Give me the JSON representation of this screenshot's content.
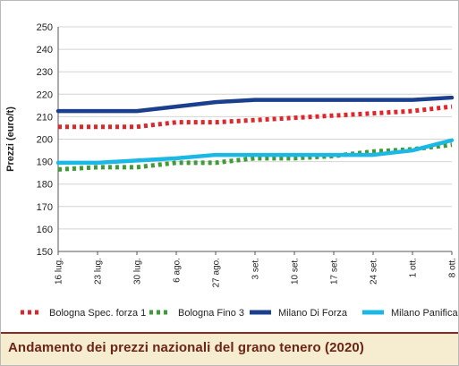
{
  "chart_data": {
    "type": "line",
    "title": "Andamento dei prezzi nazionali del grano tenero (2020)",
    "ylabel": "Prezzi (euro/t)",
    "xlabel": "",
    "ylim": [
      150,
      250
    ],
    "yticks": [
      150,
      160,
      170,
      180,
      190,
      200,
      210,
      220,
      230,
      240,
      250
    ],
    "categories": [
      "16 lug.",
      "23 lug.",
      "30 lug.",
      "6 ago.",
      "27 ago.",
      "3 set.",
      "10 set.",
      "17 set.",
      "24 set.",
      "1 ott.",
      "8 ott."
    ],
    "grid": true,
    "legend_position": "bottom",
    "series": [
      {
        "name": "Bologna Spec. forza 1",
        "color": "#e0262b",
        "style": "dotted",
        "values": [
          205.5,
          205.5,
          205.5,
          207.5,
          207.5,
          208.5,
          209.5,
          210.5,
          211.5,
          212.5,
          214.5
        ]
      },
      {
        "name": "Bologna Fino 3",
        "color": "#3e9b35",
        "style": "dotted",
        "values": [
          186.5,
          187.5,
          187.5,
          189.5,
          189.5,
          191.5,
          191.5,
          192.5,
          194.5,
          195.5,
          197.5
        ]
      },
      {
        "name": "Milano Di Forza",
        "color": "#1a3f8c",
        "style": "solid",
        "values": [
          212.5,
          212.5,
          212.5,
          214.5,
          216.5,
          217.5,
          217.5,
          217.5,
          217.5,
          217.5,
          218.5
        ]
      },
      {
        "name": "Milano Panificabile",
        "color": "#1bb8e6",
        "style": "solid",
        "values": [
          189.5,
          189.5,
          190.5,
          191.5,
          193,
          193,
          193,
          193,
          193,
          195,
          199.5
        ]
      }
    ]
  }
}
